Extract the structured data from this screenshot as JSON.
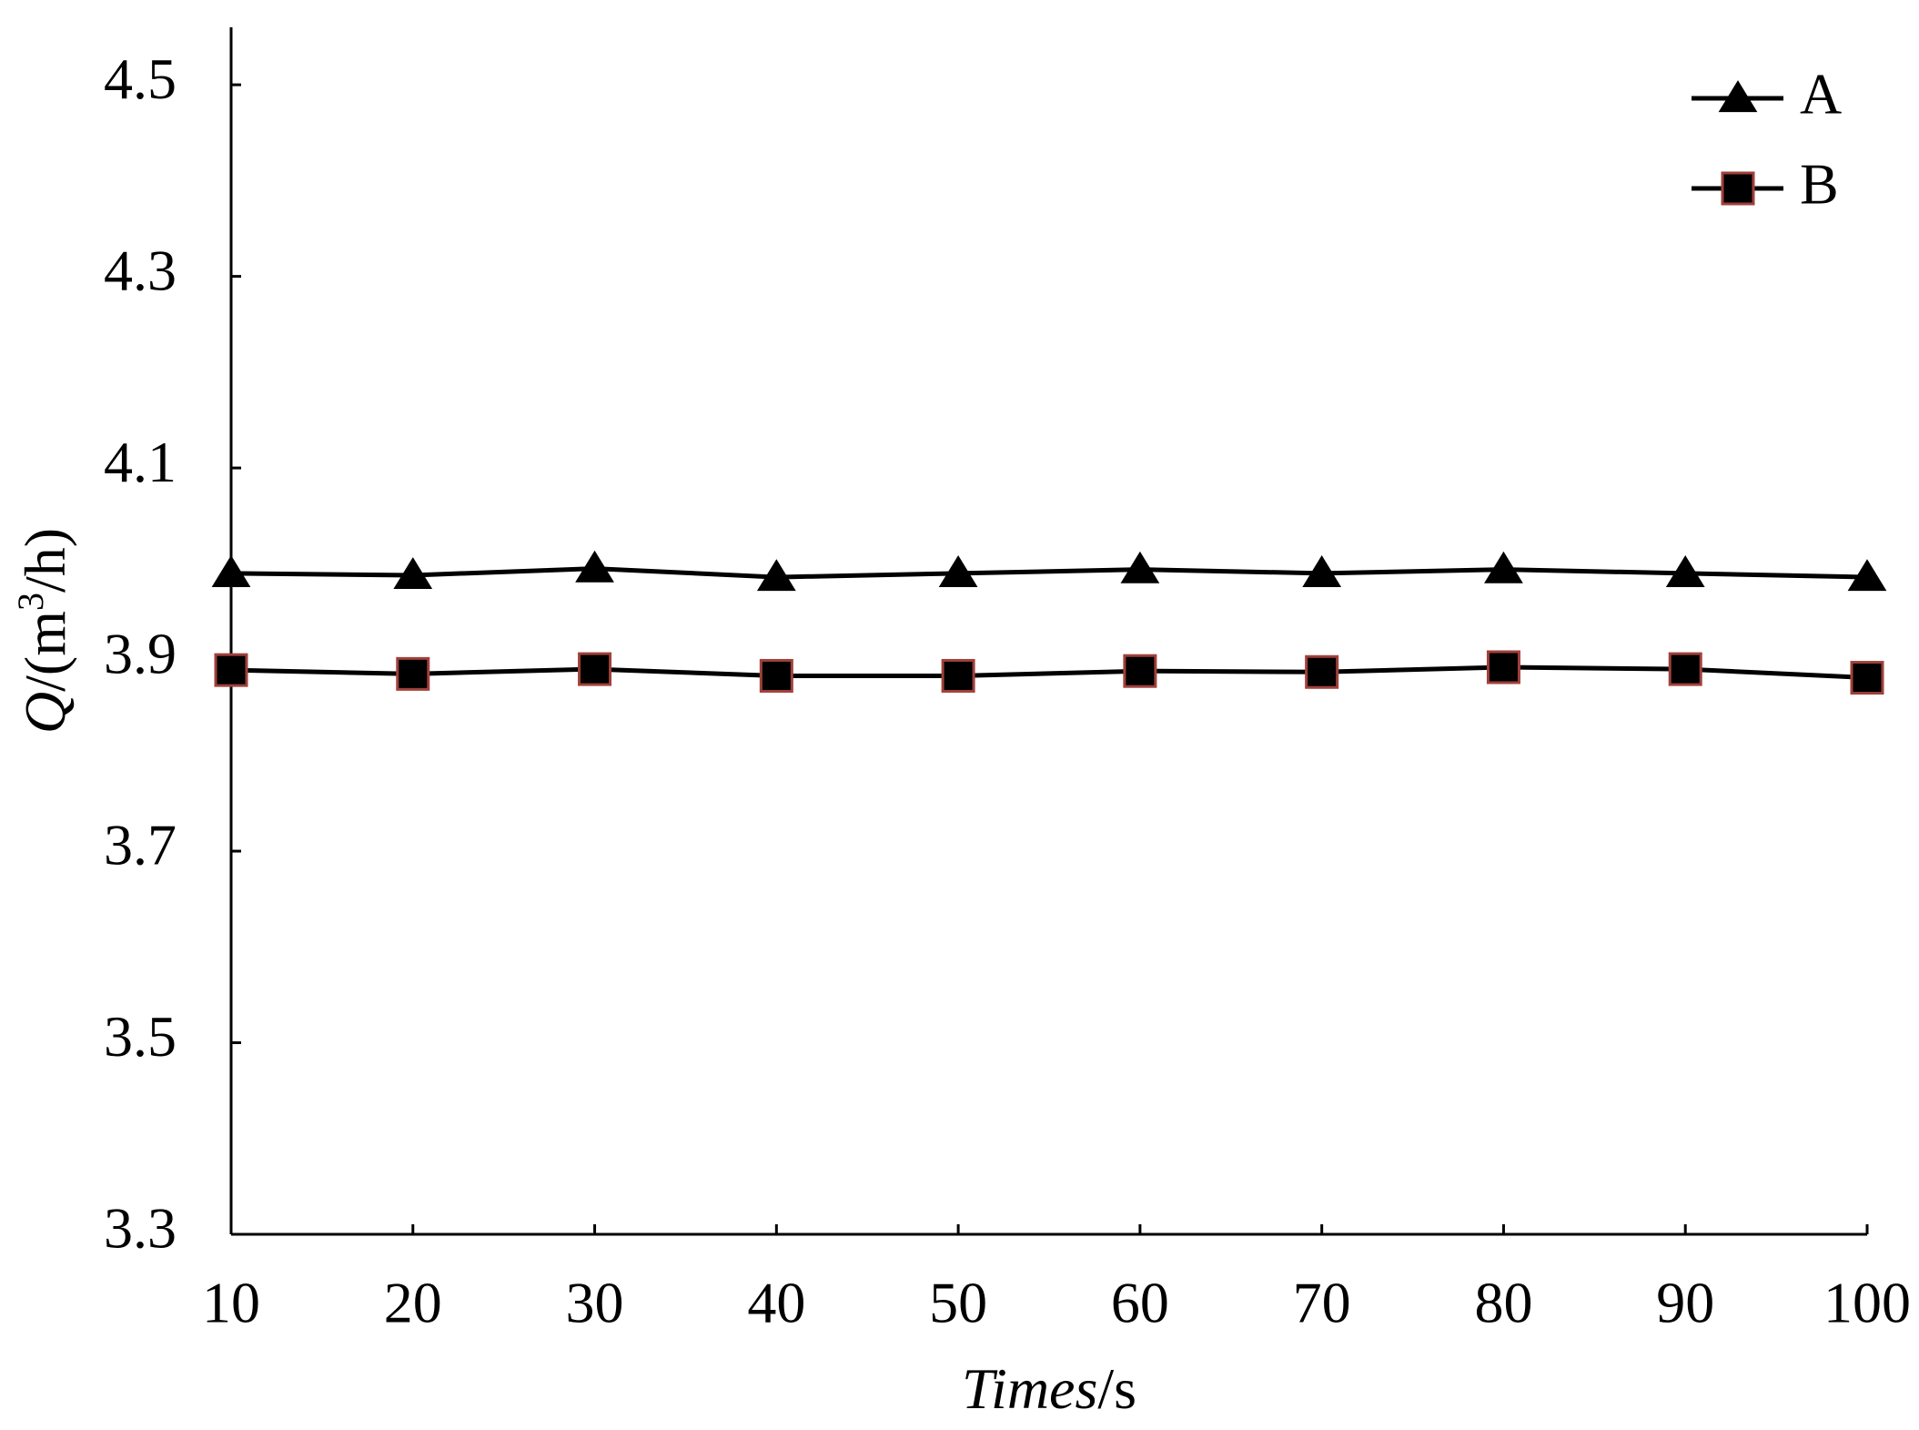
{
  "chart_data": {
    "type": "line",
    "x_label": [
      "Times",
      "/s"
    ],
    "y_label": [
      "Q",
      "/(m",
      "3",
      "/h)"
    ],
    "x": [
      10,
      20,
      30,
      40,
      50,
      60,
      70,
      80,
      90,
      100
    ],
    "series": [
      {
        "name": "A",
        "color": "#000000",
        "marker": "triangle",
        "marker_edge": "#000000",
        "values": [
          3.99,
          3.988,
          3.995,
          3.986,
          3.99,
          3.994,
          3.99,
          3.994,
          3.99,
          3.986
        ]
      },
      {
        "name": "B",
        "color": "#000000",
        "marker": "square",
        "marker_edge": "#a0403a",
        "values": [
          3.889,
          3.885,
          3.89,
          3.883,
          3.883,
          3.888,
          3.887,
          3.892,
          3.89,
          3.881
        ]
      }
    ],
    "xlim": [
      10,
      100
    ],
    "xticks": [
      10,
      20,
      30,
      40,
      50,
      60,
      70,
      80,
      90,
      100
    ],
    "ylim": [
      3.3,
      4.56
    ],
    "yticks": [
      3.3,
      3.5,
      3.7,
      3.9,
      4.1,
      4.3,
      4.5
    ],
    "grid": false,
    "legend": "upper right"
  }
}
